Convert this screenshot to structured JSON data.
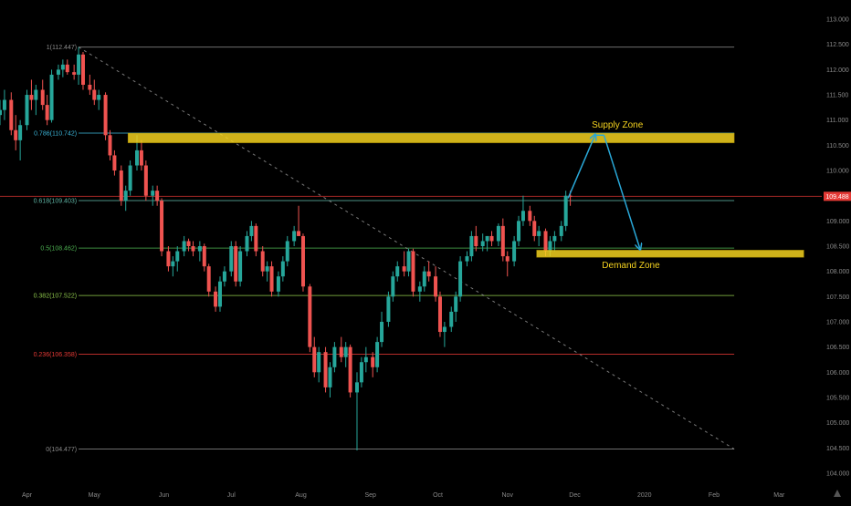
{
  "chart_data": {
    "type": "candlestick",
    "instrument_note": "",
    "x_axis": {
      "labels": [
        "Apr",
        "May",
        "Jun",
        "Jul",
        "Aug",
        "Sep",
        "Oct",
        "Nov",
        "Dec",
        "2020",
        "Feb",
        "Mar"
      ],
      "range": [
        "2019-03-20",
        "2020-03-20"
      ]
    },
    "y_axis": {
      "ticks": [
        "113.000",
        "112.500",
        "112.000",
        "111.500",
        "111.000",
        "110.500",
        "110.000",
        "109.500",
        "109.000",
        "108.500",
        "108.000",
        "107.500",
        "107.000",
        "106.500",
        "106.000",
        "105.500",
        "105.000",
        "104.500",
        "104.000"
      ],
      "range": [
        103.8,
        113.2
      ]
    },
    "last_price": {
      "value": 109.488,
      "label": "109.488",
      "color": "#e53935"
    },
    "fibonacci": [
      {
        "label": "1(112.447)",
        "price": 112.447,
        "color": "#8a8a8a"
      },
      {
        "label": "0.786(110.742)",
        "price": 110.742,
        "color": "#3bb3d6"
      },
      {
        "label": "0.618(109.403)",
        "price": 109.403,
        "color": "#5fb5a5"
      },
      {
        "label": "0.5(108.462)",
        "price": 108.462,
        "color": "#4caf50"
      },
      {
        "label": "0.382(107.522)",
        "price": 107.522,
        "color": "#8bc34a"
      },
      {
        "label": "0.236(106.358)",
        "price": 106.358,
        "color": "#e53935"
      },
      {
        "label": "0(104.477)",
        "price": 104.477,
        "color": "#8a8a8a"
      }
    ],
    "zones": [
      {
        "label": "Supply Zone",
        "top": 110.74,
        "bottom": 110.55,
        "color": "#f4d21f"
      },
      {
        "label": "Demand Zone",
        "top": 108.42,
        "bottom": 108.28,
        "color": "#f4d21f"
      }
    ],
    "projection": {
      "color": "#29a8d8",
      "points": [
        {
          "date": "2019-11-28",
          "price": 109.45
        },
        {
          "date": "2019-12-10",
          "price": 110.7
        },
        {
          "date": "2019-12-14",
          "price": 110.7
        },
        {
          "date": "2019-12-30",
          "price": 108.45
        }
      ]
    },
    "trendline": {
      "from": {
        "date": "2019-04-24",
        "price": 112.447
      },
      "to": {
        "date": "2020-02-10",
        "price": 104.477
      }
    },
    "colors": {
      "up": "#26a69a",
      "down": "#ef5350"
    },
    "candles": [
      [
        "2019-03-20",
        111.1,
        111.4,
        110.9,
        111.2
      ],
      [
        "2019-03-22",
        111.2,
        111.6,
        111.0,
        111.4
      ],
      [
        "2019-03-25",
        111.4,
        111.55,
        110.7,
        110.8
      ],
      [
        "2019-03-27",
        110.8,
        111.1,
        110.4,
        110.6
      ],
      [
        "2019-03-29",
        110.6,
        111.0,
        110.2,
        110.9
      ],
      [
        "2019-04-01",
        110.9,
        111.6,
        110.8,
        111.5
      ],
      [
        "2019-04-03",
        111.5,
        111.8,
        111.2,
        111.4
      ],
      [
        "2019-04-05",
        111.4,
        111.7,
        111.1,
        111.6
      ],
      [
        "2019-04-08",
        111.6,
        111.8,
        111.2,
        111.3
      ],
      [
        "2019-04-10",
        111.3,
        111.5,
        110.9,
        111.0
      ],
      [
        "2019-04-12",
        111.0,
        112.0,
        110.95,
        111.9
      ],
      [
        "2019-04-15",
        111.9,
        112.1,
        111.8,
        112.0
      ],
      [
        "2019-04-17",
        112.0,
        112.2,
        111.85,
        112.1
      ],
      [
        "2019-04-19",
        112.1,
        112.2,
        111.9,
        111.95
      ],
      [
        "2019-04-22",
        111.95,
        112.1,
        111.8,
        111.9
      ],
      [
        "2019-04-24",
        111.9,
        112.447,
        111.7,
        112.3
      ],
      [
        "2019-04-26",
        112.3,
        112.35,
        111.6,
        111.7
      ],
      [
        "2019-04-29",
        111.7,
        111.9,
        111.5,
        111.6
      ],
      [
        "2019-05-01",
        111.6,
        111.8,
        111.3,
        111.4
      ],
      [
        "2019-05-03",
        111.4,
        111.6,
        111.2,
        111.5
      ],
      [
        "2019-05-06",
        111.5,
        111.55,
        110.6,
        110.7
      ],
      [
        "2019-05-08",
        110.7,
        110.8,
        110.2,
        110.3
      ],
      [
        "2019-05-10",
        110.3,
        110.4,
        109.9,
        110.0
      ],
      [
        "2019-05-13",
        110.0,
        110.1,
        109.3,
        109.4
      ],
      [
        "2019-05-15",
        109.4,
        109.7,
        109.2,
        109.6
      ],
      [
        "2019-05-17",
        109.6,
        110.2,
        109.5,
        110.1
      ],
      [
        "2019-05-20",
        110.1,
        110.7,
        110.0,
        110.4
      ],
      [
        "2019-05-22",
        110.4,
        110.6,
        110.0,
        110.1
      ],
      [
        "2019-05-24",
        110.1,
        110.2,
        109.4,
        109.5
      ],
      [
        "2019-05-27",
        109.5,
        109.7,
        109.3,
        109.6
      ],
      [
        "2019-05-29",
        109.6,
        109.7,
        109.3,
        109.4
      ],
      [
        "2019-05-31",
        109.4,
        109.45,
        108.3,
        108.4
      ],
      [
        "2019-06-03",
        108.4,
        108.5,
        108.0,
        108.1
      ],
      [
        "2019-06-05",
        108.1,
        108.3,
        107.9,
        108.2
      ],
      [
        "2019-06-07",
        108.2,
        108.5,
        108.0,
        108.4
      ],
      [
        "2019-06-10",
        108.4,
        108.7,
        108.3,
        108.6
      ],
      [
        "2019-06-12",
        108.6,
        108.65,
        108.4,
        108.5
      ],
      [
        "2019-06-14",
        108.5,
        108.6,
        108.3,
        108.4
      ],
      [
        "2019-06-17",
        108.4,
        108.6,
        108.2,
        108.5
      ],
      [
        "2019-06-19",
        108.5,
        108.55,
        108.0,
        108.1
      ],
      [
        "2019-06-21",
        108.1,
        108.15,
        107.5,
        107.6
      ],
      [
        "2019-06-24",
        107.6,
        107.7,
        107.2,
        107.3
      ],
      [
        "2019-06-26",
        107.3,
        107.9,
        107.2,
        107.8
      ],
      [
        "2019-06-28",
        107.8,
        108.1,
        107.7,
        108.0
      ],
      [
        "2019-07-01",
        108.0,
        108.6,
        107.9,
        108.5
      ],
      [
        "2019-07-03",
        108.5,
        108.6,
        107.7,
        107.8
      ],
      [
        "2019-07-05",
        107.8,
        108.5,
        107.7,
        108.4
      ],
      [
        "2019-07-08",
        108.4,
        108.8,
        108.3,
        108.7
      ],
      [
        "2019-07-10",
        108.7,
        109.0,
        108.6,
        108.9
      ],
      [
        "2019-07-12",
        108.9,
        108.95,
        108.3,
        108.4
      ],
      [
        "2019-07-15",
        108.4,
        108.5,
        107.9,
        108.0
      ],
      [
        "2019-07-17",
        108.0,
        108.2,
        107.8,
        108.1
      ],
      [
        "2019-07-19",
        108.1,
        108.2,
        107.5,
        107.6
      ],
      [
        "2019-07-22",
        107.6,
        108.0,
        107.5,
        107.9
      ],
      [
        "2019-07-24",
        107.9,
        108.3,
        107.8,
        108.2
      ],
      [
        "2019-07-26",
        108.2,
        108.7,
        108.1,
        108.6
      ],
      [
        "2019-07-29",
        108.6,
        108.9,
        108.5,
        108.8
      ],
      [
        "2019-07-31",
        108.8,
        109.3,
        108.7,
        108.7
      ],
      [
        "2019-08-02",
        108.7,
        108.75,
        107.6,
        107.7
      ],
      [
        "2019-08-05",
        107.7,
        107.75,
        106.4,
        106.5
      ],
      [
        "2019-08-07",
        106.5,
        106.7,
        105.9,
        106.0
      ],
      [
        "2019-08-09",
        106.0,
        106.5,
        105.8,
        106.4
      ],
      [
        "2019-08-12",
        106.4,
        106.5,
        105.6,
        105.7
      ],
      [
        "2019-08-14",
        105.7,
        106.2,
        105.5,
        106.1
      ],
      [
        "2019-08-16",
        106.1,
        106.6,
        106.0,
        106.5
      ],
      [
        "2019-08-19",
        106.5,
        106.7,
        106.2,
        106.3
      ],
      [
        "2019-08-21",
        106.3,
        106.6,
        106.1,
        106.5
      ],
      [
        "2019-08-23",
        106.5,
        106.55,
        105.5,
        105.6
      ],
      [
        "2019-08-26",
        105.6,
        106.0,
        104.45,
        105.8
      ],
      [
        "2019-08-28",
        105.8,
        106.3,
        105.7,
        106.2
      ],
      [
        "2019-08-30",
        106.2,
        106.5,
        106.0,
        106.3
      ],
      [
        "2019-09-02",
        106.3,
        106.4,
        105.9,
        106.1
      ],
      [
        "2019-09-04",
        106.1,
        106.7,
        106.0,
        106.6
      ],
      [
        "2019-09-06",
        106.6,
        107.2,
        106.5,
        107.0
      ],
      [
        "2019-09-09",
        107.0,
        107.6,
        106.9,
        107.5
      ],
      [
        "2019-09-11",
        107.5,
        108.0,
        107.4,
        107.9
      ],
      [
        "2019-09-13",
        107.9,
        108.2,
        107.8,
        108.1
      ],
      [
        "2019-09-16",
        108.1,
        108.4,
        107.9,
        108.0
      ],
      [
        "2019-09-18",
        108.0,
        108.45,
        107.9,
        108.4
      ],
      [
        "2019-09-20",
        108.4,
        108.45,
        107.5,
        107.6
      ],
      [
        "2019-09-23",
        107.6,
        107.8,
        107.4,
        107.7
      ],
      [
        "2019-09-25",
        107.7,
        108.1,
        107.6,
        108.0
      ],
      [
        "2019-09-27",
        108.0,
        108.2,
        107.8,
        107.9
      ],
      [
        "2019-09-30",
        107.9,
        108.1,
        107.4,
        107.5
      ],
      [
        "2019-10-02",
        107.5,
        107.6,
        106.7,
        106.8
      ],
      [
        "2019-10-04",
        106.8,
        107.0,
        106.5,
        106.9
      ],
      [
        "2019-10-07",
        106.9,
        107.3,
        106.8,
        107.2
      ],
      [
        "2019-10-09",
        107.2,
        107.6,
        107.0,
        107.5
      ],
      [
        "2019-10-11",
        107.5,
        108.3,
        107.4,
        108.2
      ],
      [
        "2019-10-14",
        108.2,
        108.4,
        108.1,
        108.3
      ],
      [
        "2019-10-16",
        108.3,
        108.8,
        108.2,
        108.7
      ],
      [
        "2019-10-18",
        108.7,
        108.9,
        108.4,
        108.5
      ],
      [
        "2019-10-21",
        108.5,
        108.75,
        108.4,
        108.6
      ],
      [
        "2019-10-23",
        108.6,
        108.7,
        108.4,
        108.7
      ],
      [
        "2019-10-25",
        108.7,
        108.8,
        108.5,
        108.6
      ],
      [
        "2019-10-28",
        108.6,
        108.95,
        108.5,
        108.9
      ],
      [
        "2019-10-30",
        108.9,
        109.05,
        108.2,
        108.3
      ],
      [
        "2019-11-01",
        108.3,
        108.4,
        107.9,
        108.2
      ],
      [
        "2019-11-04",
        108.2,
        108.7,
        108.1,
        108.6
      ],
      [
        "2019-11-06",
        108.6,
        109.1,
        108.5,
        109.0
      ],
      [
        "2019-11-08",
        109.0,
        109.5,
        108.9,
        109.2
      ],
      [
        "2019-11-11",
        109.2,
        109.3,
        108.9,
        109.0
      ],
      [
        "2019-11-13",
        109.0,
        109.1,
        108.6,
        108.7
      ],
      [
        "2019-11-15",
        108.7,
        108.9,
        108.5,
        108.8
      ],
      [
        "2019-11-18",
        108.8,
        108.85,
        108.3,
        108.4
      ],
      [
        "2019-11-20",
        108.4,
        108.7,
        108.3,
        108.6
      ],
      [
        "2019-11-22",
        108.6,
        108.8,
        108.4,
        108.7
      ],
      [
        "2019-11-25",
        108.7,
        109.0,
        108.6,
        108.9
      ],
      [
        "2019-11-27",
        108.9,
        109.6,
        108.8,
        109.5
      ],
      [
        "2019-11-29",
        109.5,
        109.6,
        109.3,
        109.488
      ]
    ],
    "data_label": "109.488"
  }
}
